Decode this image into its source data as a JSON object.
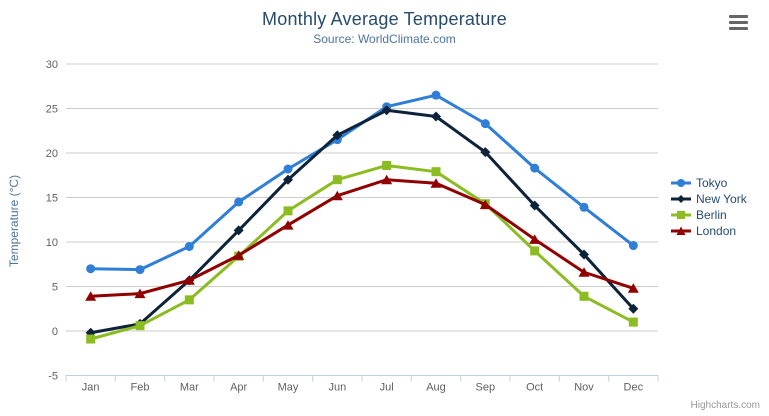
{
  "header": {
    "title": "Monthly Average Temperature",
    "subtitle": "Source: WorldClimate.com"
  },
  "export_button": {
    "icon": "hamburger-menu-icon"
  },
  "credits": {
    "label": "Highcharts.com"
  },
  "chart_data": {
    "type": "line",
    "title": "Monthly Average Temperature",
    "subtitle": "Source: WorldClimate.com",
    "xlabel": "",
    "ylabel": "Temperature (°C)",
    "ylim": [
      -5,
      30
    ],
    "y_ticks": [
      -5,
      0,
      5,
      10,
      15,
      20,
      25,
      30
    ],
    "grid": true,
    "legend_position": "right",
    "categories": [
      "Jan",
      "Feb",
      "Mar",
      "Apr",
      "May",
      "Jun",
      "Jul",
      "Aug",
      "Sep",
      "Oct",
      "Nov",
      "Dec"
    ],
    "series": [
      {
        "name": "Tokyo",
        "color": "#2f7ed8",
        "marker": "circle",
        "values": [
          7.0,
          6.9,
          9.5,
          14.5,
          18.2,
          21.5,
          25.2,
          26.5,
          23.3,
          18.3,
          13.9,
          9.6
        ]
      },
      {
        "name": "New York",
        "color": "#0d233a",
        "marker": "diamond",
        "values": [
          -0.2,
          0.8,
          5.7,
          11.3,
          17.0,
          22.0,
          24.8,
          24.1,
          20.1,
          14.1,
          8.6,
          2.5
        ]
      },
      {
        "name": "Berlin",
        "color": "#8bbc21",
        "marker": "square",
        "values": [
          -0.9,
          0.6,
          3.5,
          8.4,
          13.5,
          17.0,
          18.6,
          17.9,
          14.3,
          9.0,
          3.9,
          1.0
        ]
      },
      {
        "name": "London",
        "color": "#910000",
        "marker": "triangle",
        "values": [
          3.9,
          4.2,
          5.7,
          8.5,
          11.9,
          15.2,
          17.0,
          16.6,
          14.2,
          10.3,
          6.6,
          4.8
        ]
      }
    ],
    "colors": {
      "grid_line": "#cccccc",
      "axis_line": "#c0d0e0",
      "tick_label": "#606060"
    }
  }
}
